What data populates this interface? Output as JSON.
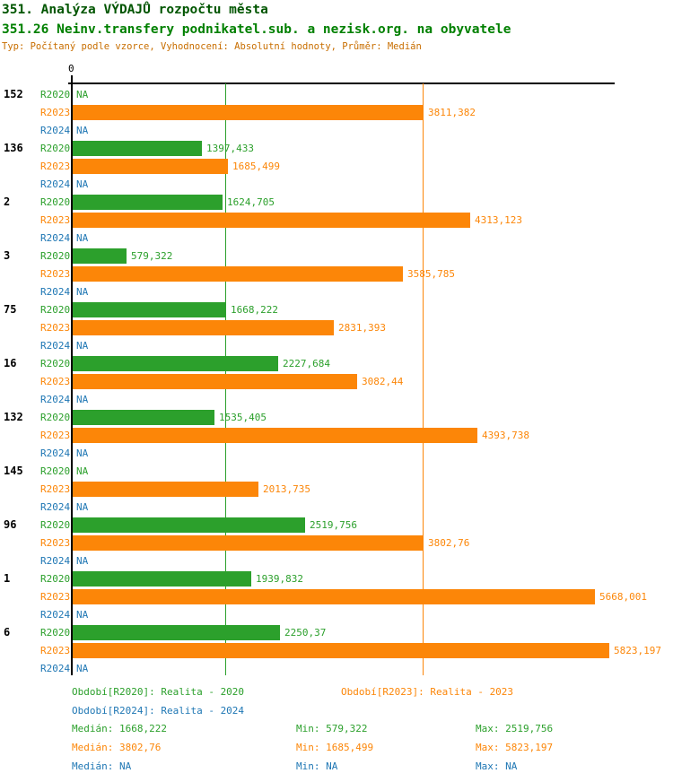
{
  "header": {
    "title": "351. Analýza VÝDAJŮ rozpočtu města",
    "subtitle": "351.26 Neinv.transfery podnikatel.sub. a nezisk.org. na obyvatele",
    "meta": "Typ: Počítaný podle vzorce, Vyhodnocení: Absolutní hodnoty, Průměr: Medián"
  },
  "colors": {
    "R2020": "#2CA02C",
    "R2023": "#FC8608",
    "R2024": "#1F77B4",
    "axis": "#000000",
    "title": "#005500",
    "subtitle": "#008000",
    "meta": "#C86E00"
  },
  "chart_data": {
    "type": "bar",
    "orientation": "horizontal",
    "zero_label": "0",
    "na_label": "NA",
    "xlim": [
      0,
      5890
    ],
    "series_names": [
      "R2020",
      "R2023",
      "R2024"
    ],
    "gridlines": [
      {
        "series": "R2020",
        "value": 1668.222,
        "meaning": "median"
      },
      {
        "series": "R2023",
        "value": 3802.76,
        "meaning": "median"
      }
    ],
    "groups": [
      {
        "id": "152",
        "bars": [
          {
            "period": "R2020",
            "display": "NA",
            "value": null
          },
          {
            "period": "R2023",
            "display": "3811,382",
            "value": 3811.382
          },
          {
            "period": "R2024",
            "display": "NA",
            "value": null
          }
        ]
      },
      {
        "id": "136",
        "bars": [
          {
            "period": "R2020",
            "display": "1397,433",
            "value": 1397.433
          },
          {
            "period": "R2023",
            "display": "1685,499",
            "value": 1685.499
          },
          {
            "period": "R2024",
            "display": "NA",
            "value": null
          }
        ]
      },
      {
        "id": "2",
        "bars": [
          {
            "period": "R2020",
            "display": "1624,705",
            "value": 1624.705
          },
          {
            "period": "R2023",
            "display": "4313,123",
            "value": 4313.123
          },
          {
            "period": "R2024",
            "display": "NA",
            "value": null
          }
        ]
      },
      {
        "id": "3",
        "bars": [
          {
            "period": "R2020",
            "display": "579,322",
            "value": 579.322
          },
          {
            "period": "R2023",
            "display": "3585,785",
            "value": 3585.785
          },
          {
            "period": "R2024",
            "display": "NA",
            "value": null
          }
        ]
      },
      {
        "id": "75",
        "bars": [
          {
            "period": "R2020",
            "display": "1668,222",
            "value": 1668.222
          },
          {
            "period": "R2023",
            "display": "2831,393",
            "value": 2831.393
          },
          {
            "period": "R2024",
            "display": "NA",
            "value": null
          }
        ]
      },
      {
        "id": "16",
        "bars": [
          {
            "period": "R2020",
            "display": "2227,684",
            "value": 2227.684
          },
          {
            "period": "R2023",
            "display": "3082,44",
            "value": 3082.44
          },
          {
            "period": "R2024",
            "display": "NA",
            "value": null
          }
        ]
      },
      {
        "id": "132",
        "bars": [
          {
            "period": "R2020",
            "display": "1535,405",
            "value": 1535.405
          },
          {
            "period": "R2023",
            "display": "4393,738",
            "value": 4393.738
          },
          {
            "period": "R2024",
            "display": "NA",
            "value": null
          }
        ]
      },
      {
        "id": "145",
        "bars": [
          {
            "period": "R2020",
            "display": "NA",
            "value": null
          },
          {
            "period": "R2023",
            "display": "2013,735",
            "value": 2013.735
          },
          {
            "period": "R2024",
            "display": "NA",
            "value": null
          }
        ]
      },
      {
        "id": "96",
        "bars": [
          {
            "period": "R2020",
            "display": "2519,756",
            "value": 2519.756
          },
          {
            "period": "R2023",
            "display": "3802,76",
            "value": 3802.76
          },
          {
            "period": "R2024",
            "display": "NA",
            "value": null
          }
        ]
      },
      {
        "id": "1",
        "bars": [
          {
            "period": "R2020",
            "display": "1939,832",
            "value": 1939.832
          },
          {
            "period": "R2023",
            "display": "5668,001",
            "value": 5668.001
          },
          {
            "period": "R2024",
            "display": "NA",
            "value": null
          }
        ]
      },
      {
        "id": "6",
        "bars": [
          {
            "period": "R2020",
            "display": "2250,37",
            "value": 2250.37
          },
          {
            "period": "R2023",
            "display": "5823,197",
            "value": 5823.197
          },
          {
            "period": "R2024",
            "display": "NA",
            "value": null
          }
        ]
      }
    ]
  },
  "legend": {
    "items": [
      {
        "period": "R2020",
        "text": "Období[R2020]: Realita - 2020",
        "row": 0,
        "col": 0
      },
      {
        "period": "R2023",
        "text": "Období[R2023]: Realita - 2023",
        "row": 0,
        "col": 1
      },
      {
        "period": "R2024",
        "text": "Období[R2024]: Realita - 2024",
        "row": 1,
        "col": 0
      }
    ]
  },
  "stats": {
    "rows": [
      {
        "period": "R2020",
        "median": "Medián: 1668,222",
        "min": "Min: 579,322",
        "max": "Max: 2519,756"
      },
      {
        "period": "R2023",
        "median": "Medián: 3802,76",
        "min": "Min: 1685,499",
        "max": "Max: 5823,197"
      },
      {
        "period": "R2024",
        "median": "Medián: NA",
        "min": "Min: NA",
        "max": "Max: NA"
      }
    ]
  }
}
